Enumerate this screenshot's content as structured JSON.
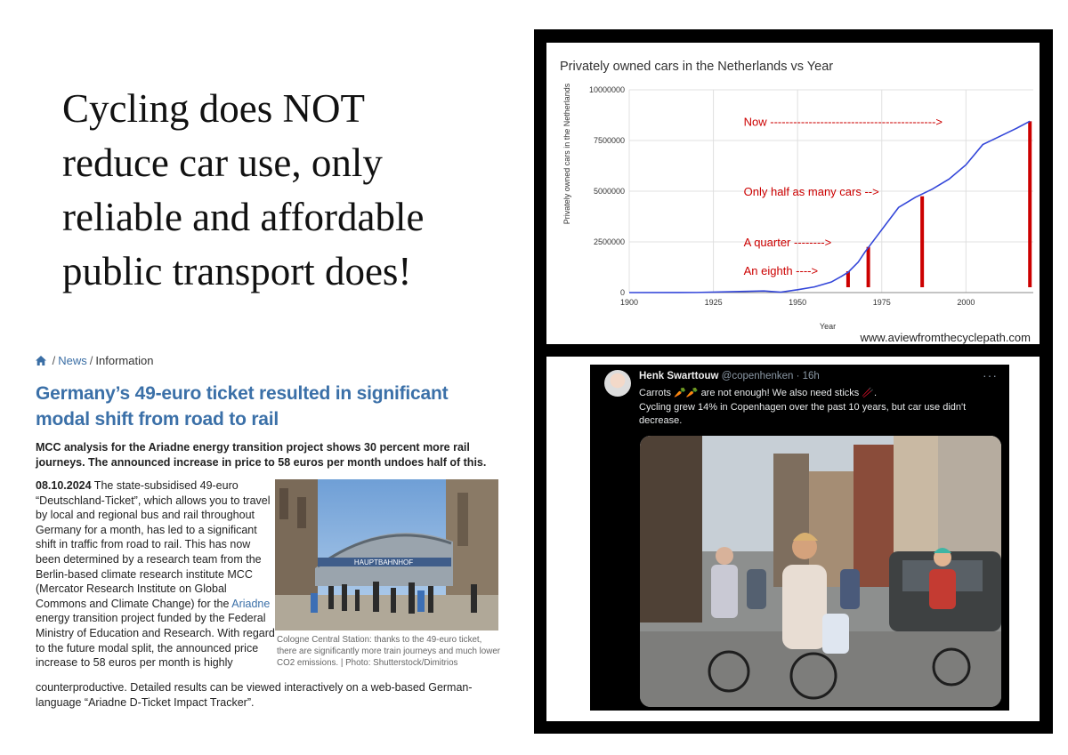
{
  "headline": {
    "lines": [
      "Cycling does NOT",
      "reduce car use, only",
      "reliable and affordable",
      "public transport does!"
    ]
  },
  "article": {
    "breadcrumb": {
      "sep1": "/",
      "news": "News",
      "sep2": "/",
      "current": "Information"
    },
    "title": "Germany’s 49-euro ticket resulted in significant modal shift from road to rail",
    "lead": "MCC analysis for the Ariadne energy transition project shows 30 percent more rail journeys. The announced increase in price to 58 euros per month undoes half of this.",
    "date": "08.10.2024",
    "body_part1": " The state-subsidised 49-euro “Deutschland-Ticket”, which allows you to travel by local and regional bus and rail throughout Germany for a month, has led to a significant shift in traffic from road to rail. This has now been determined by a research team from the Berlin-based climate research institute MCC (Mercator Research Institute on Global Commons and Climate Change) for the ",
    "body_link": "Ariadne",
    "body_part2": " energy transition project funded by the Federal Ministry of Education and Research. With regard to the future modal split, the announced price increase to 58 euros per month is highly",
    "body_part3": "counterproductive. Detailed results can be viewed interactively on a web-based German-language “Ariadne D-Ticket Impact Tracker”.",
    "photo_sign": "HAUPTBAHNHOF",
    "caption": "Cologne Central Station: thanks to the 49-euro ticket, there are significantly more train journeys and much lower CO2 emissions. | Photo: Shutterstock/Dimitrios"
  },
  "chart_data": {
    "type": "line",
    "title": "Privately owned cars in the Netherlands vs Year",
    "xlabel": "Year",
    "ylabel": "Privately owned cars in the Netherlands",
    "xlim": [
      1900,
      2020
    ],
    "ylim": [
      0,
      10000000
    ],
    "x_ticks": [
      "1900",
      "1925",
      "1950",
      "1975",
      "2000"
    ],
    "y_ticks": [
      "0",
      "2500000",
      "5000000",
      "7500000",
      "10000000"
    ],
    "grid": true,
    "line_color": "#3346d9",
    "series": [
      {
        "x": [
          1900,
          1920,
          1930,
          1940,
          1945,
          1950,
          1955,
          1960,
          1963,
          1965,
          1968,
          1970,
          1975,
          1980,
          1985,
          1990,
          1995,
          2000,
          2005,
          2010,
          2015,
          2019
        ],
        "y": [
          0,
          5000,
          40000,
          80000,
          20000,
          140000,
          280000,
          520000,
          800000,
          1000000,
          1500000,
          2000000,
          3100000,
          4200000,
          4700000,
          5100000,
          5600000,
          6300000,
          7300000,
          7700000,
          8100000,
          8450000
        ]
      }
    ],
    "red_bars": {
      "color": "#cc0000",
      "x": [
        1965,
        1971,
        1987,
        2019
      ],
      "y": [
        1050000,
        2250000,
        4750000,
        8450000
      ]
    },
    "annotations": [
      {
        "text": "Now ------------------------------------------->",
        "x": 1934,
        "y": 8450000
      },
      {
        "text": "Only half as many cars -->",
        "x": 1934,
        "y": 5000000
      },
      {
        "text": "A quarter -------->",
        "x": 1934,
        "y": 2500000
      },
      {
        "text": "An eighth ---->",
        "x": 1934,
        "y": 1100000
      }
    ],
    "watermark": "www.aviewfromthecyclepath.com"
  },
  "tweet": {
    "name": "Henk Swarttouw",
    "handle": "@copenhenken · 16h",
    "more": "···",
    "line1": "Carrots 🥕🥕 are not enough! We also need sticks 🥢.",
    "line2": "Cycling grew 14% in Copenhagen over the past 10 years, but car use didn't decrease."
  },
  "colors": {
    "title_blue": "#3b70a8",
    "red": "#cc0000",
    "line_blue": "#3346d9"
  }
}
